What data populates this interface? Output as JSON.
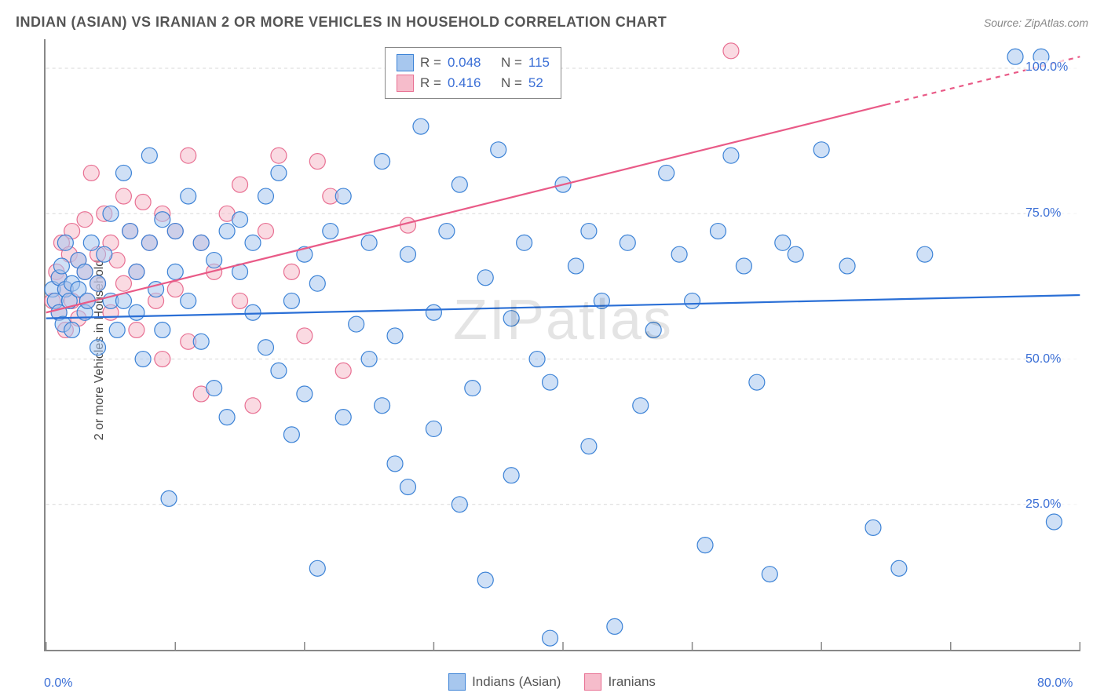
{
  "title": "INDIAN (ASIAN) VS IRANIAN 2 OR MORE VEHICLES IN HOUSEHOLD CORRELATION CHART",
  "source_label": "Source: ",
  "source_name": "ZipAtlas.com",
  "y_axis_label": "2 or more Vehicles in Household",
  "watermark": "ZIPatlas",
  "chart": {
    "type": "scatter",
    "xlim": [
      0,
      80
    ],
    "ylim": [
      0,
      105
    ],
    "x_ticks": [
      0,
      10,
      20,
      30,
      40,
      50,
      60,
      70,
      80
    ],
    "x_tick_labels": {
      "0": "0.0%",
      "80": "80.0%"
    },
    "y_ticks": [
      25,
      50,
      75,
      100
    ],
    "y_tick_labels": {
      "25": "25.0%",
      "50": "50.0%",
      "75": "75.0%",
      "100": "100.0%"
    },
    "grid_color": "#d8d8d8",
    "grid_dash": "4,4",
    "axis_color": "#888888",
    "background_color": "#ffffff",
    "marker_radius": 10,
    "marker_opacity": 0.55,
    "marker_stroke_width": 1.2,
    "line_width": 2.2,
    "series": [
      {
        "name": "indians",
        "label": "Indians (Asian)",
        "fill": "#a7c7ee",
        "stroke": "#3b82d6",
        "line_color": "#2a6fd6",
        "r_value": "0.048",
        "n_value": "115",
        "trend": {
          "x1": 0,
          "y1": 57,
          "x2": 80,
          "y2": 61,
          "dash_from_x": null
        },
        "points": [
          [
            0.5,
            62
          ],
          [
            0.7,
            60
          ],
          [
            1,
            64
          ],
          [
            1,
            58
          ],
          [
            1.2,
            66
          ],
          [
            1.3,
            56
          ],
          [
            1.5,
            62
          ],
          [
            1.5,
            70
          ],
          [
            1.8,
            60
          ],
          [
            2,
            63
          ],
          [
            2,
            55
          ],
          [
            2.5,
            62
          ],
          [
            2.5,
            67
          ],
          [
            3,
            58
          ],
          [
            3,
            65
          ],
          [
            3.2,
            60
          ],
          [
            3.5,
            70
          ],
          [
            4,
            52
          ],
          [
            4,
            63
          ],
          [
            4.5,
            68
          ],
          [
            5,
            60
          ],
          [
            5,
            75
          ],
          [
            5.5,
            55
          ],
          [
            6,
            82
          ],
          [
            6,
            60
          ],
          [
            6.5,
            72
          ],
          [
            7,
            65
          ],
          [
            7,
            58
          ],
          [
            7.5,
            50
          ],
          [
            8,
            70
          ],
          [
            8,
            85
          ],
          [
            8.5,
            62
          ],
          [
            9,
            55
          ],
          [
            9,
            74
          ],
          [
            9.5,
            26
          ],
          [
            10,
            72
          ],
          [
            10,
            65
          ],
          [
            11,
            60
          ],
          [
            11,
            78
          ],
          [
            12,
            53
          ],
          [
            12,
            70
          ],
          [
            13,
            67
          ],
          [
            13,
            45
          ],
          [
            14,
            72
          ],
          [
            14,
            40
          ],
          [
            15,
            65
          ],
          [
            15,
            74
          ],
          [
            16,
            58
          ],
          [
            16,
            70
          ],
          [
            17,
            52
          ],
          [
            17,
            78
          ],
          [
            18,
            82
          ],
          [
            18,
            48
          ],
          [
            19,
            60
          ],
          [
            19,
            37
          ],
          [
            20,
            44
          ],
          [
            20,
            68
          ],
          [
            21,
            14
          ],
          [
            21,
            63
          ],
          [
            22,
            72
          ],
          [
            23,
            40
          ],
          [
            23,
            78
          ],
          [
            24,
            56
          ],
          [
            25,
            50
          ],
          [
            25,
            70
          ],
          [
            26,
            42
          ],
          [
            26,
            84
          ],
          [
            27,
            32
          ],
          [
            27,
            54
          ],
          [
            28,
            28
          ],
          [
            28,
            68
          ],
          [
            29,
            90
          ],
          [
            30,
            58
          ],
          [
            30,
            38
          ],
          [
            31,
            72
          ],
          [
            32,
            25
          ],
          [
            32,
            80
          ],
          [
            33,
            45
          ],
          [
            34,
            12
          ],
          [
            34,
            64
          ],
          [
            35,
            86
          ],
          [
            36,
            30
          ],
          [
            36,
            57
          ],
          [
            37,
            70
          ],
          [
            38,
            50
          ],
          [
            39,
            46
          ],
          [
            39,
            2
          ],
          [
            40,
            80
          ],
          [
            41,
            66
          ],
          [
            42,
            35
          ],
          [
            42,
            72
          ],
          [
            43,
            60
          ],
          [
            44,
            4
          ],
          [
            45,
            70
          ],
          [
            46,
            42
          ],
          [
            47,
            55
          ],
          [
            48,
            82
          ],
          [
            49,
            68
          ],
          [
            50,
            60
          ],
          [
            51,
            18
          ],
          [
            52,
            72
          ],
          [
            53,
            85
          ],
          [
            54,
            66
          ],
          [
            55,
            46
          ],
          [
            56,
            13
          ],
          [
            57,
            70
          ],
          [
            58,
            68
          ],
          [
            60,
            86
          ],
          [
            62,
            66
          ],
          [
            64,
            21
          ],
          [
            66,
            14
          ],
          [
            68,
            68
          ],
          [
            75,
            102
          ],
          [
            77,
            102
          ],
          [
            78,
            22
          ]
        ]
      },
      {
        "name": "iranians",
        "label": "Iranians",
        "fill": "#f6bccb",
        "stroke": "#e86f92",
        "line_color": "#e95a87",
        "r_value": "0.416",
        "n_value": "52",
        "trend": {
          "x1": 0,
          "y1": 58,
          "x2": 80,
          "y2": 102,
          "dash_from_x": 65
        },
        "points": [
          [
            0.5,
            60
          ],
          [
            0.8,
            65
          ],
          [
            1,
            58
          ],
          [
            1,
            64
          ],
          [
            1.2,
            70
          ],
          [
            1.5,
            62
          ],
          [
            1.5,
            55
          ],
          [
            1.8,
            68
          ],
          [
            2,
            60
          ],
          [
            2,
            72
          ],
          [
            2.5,
            67
          ],
          [
            2.5,
            57
          ],
          [
            3,
            65
          ],
          [
            3,
            74
          ],
          [
            3.2,
            60
          ],
          [
            3.5,
            82
          ],
          [
            4,
            68
          ],
          [
            4,
            63
          ],
          [
            4.5,
            75
          ],
          [
            5,
            58
          ],
          [
            5,
            70
          ],
          [
            5.5,
            67
          ],
          [
            6,
            78
          ],
          [
            6,
            63
          ],
          [
            6.5,
            72
          ],
          [
            7,
            55
          ],
          [
            7,
            65
          ],
          [
            7.5,
            77
          ],
          [
            8,
            70
          ],
          [
            8.5,
            60
          ],
          [
            9,
            75
          ],
          [
            9,
            50
          ],
          [
            10,
            72
          ],
          [
            10,
            62
          ],
          [
            11,
            53
          ],
          [
            11,
            85
          ],
          [
            12,
            70
          ],
          [
            12,
            44
          ],
          [
            13,
            65
          ],
          [
            14,
            75
          ],
          [
            15,
            60
          ],
          [
            15,
            80
          ],
          [
            16,
            42
          ],
          [
            17,
            72
          ],
          [
            18,
            85
          ],
          [
            19,
            65
          ],
          [
            20,
            54
          ],
          [
            21,
            84
          ],
          [
            22,
            78
          ],
          [
            23,
            48
          ],
          [
            28,
            73
          ],
          [
            53,
            103
          ]
        ]
      }
    ]
  },
  "stats_box": {
    "r_label": "R =",
    "n_label": "N ="
  },
  "legend": {
    "series1": "Indians (Asian)",
    "series2": "Iranians"
  }
}
